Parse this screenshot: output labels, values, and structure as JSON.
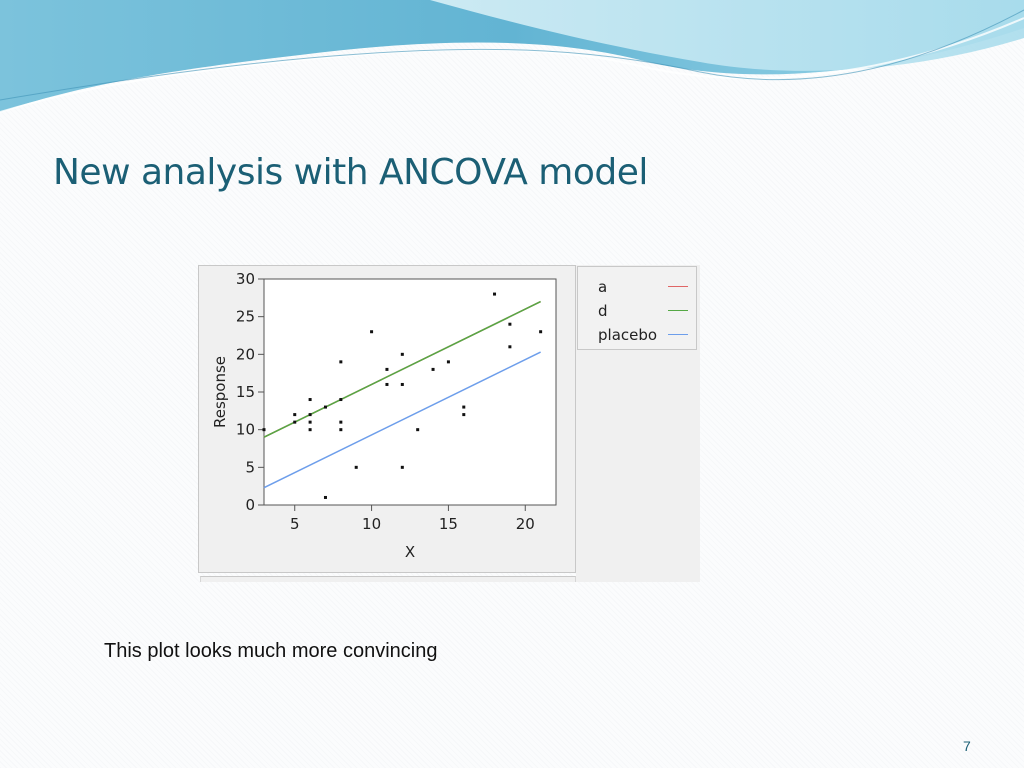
{
  "slide": {
    "title": "New analysis with ANCOVA model",
    "caption": "This plot looks much more convincing",
    "page_number": "7"
  },
  "colors": {
    "title": "#1b5f75",
    "banner_dark": "#4fa7c9",
    "banner_light": "#bfe6f2",
    "series_a": "#e06666",
    "series_d": "#55a845",
    "series_placebo": "#6d9eeb"
  },
  "chart_data": {
    "type": "scatter",
    "title": "",
    "xlabel": "X",
    "ylabel": "Response",
    "xlim": [
      3,
      22
    ],
    "ylim": [
      0,
      30
    ],
    "xticks": [
      5,
      10,
      15,
      20
    ],
    "yticks": [
      0,
      5,
      10,
      15,
      20,
      25,
      30
    ],
    "grid": false,
    "legend_position": "right",
    "points": [
      {
        "x": 3,
        "y": 10
      },
      {
        "x": 5,
        "y": 12
      },
      {
        "x": 5,
        "y": 11
      },
      {
        "x": 6,
        "y": 14
      },
      {
        "x": 6,
        "y": 12
      },
      {
        "x": 6,
        "y": 11
      },
      {
        "x": 6,
        "y": 10
      },
      {
        "x": 7,
        "y": 13
      },
      {
        "x": 7,
        "y": 1
      },
      {
        "x": 8,
        "y": 19
      },
      {
        "x": 8,
        "y": 14
      },
      {
        "x": 8,
        "y": 11
      },
      {
        "x": 8,
        "y": 10
      },
      {
        "x": 9,
        "y": 5
      },
      {
        "x": 10,
        "y": 23
      },
      {
        "x": 11,
        "y": 18
      },
      {
        "x": 11,
        "y": 16
      },
      {
        "x": 12,
        "y": 20
      },
      {
        "x": 12,
        "y": 16
      },
      {
        "x": 12,
        "y": 5
      },
      {
        "x": 13,
        "y": 10
      },
      {
        "x": 14,
        "y": 18
      },
      {
        "x": 15,
        "y": 19
      },
      {
        "x": 16,
        "y": 13
      },
      {
        "x": 16,
        "y": 12
      },
      {
        "x": 18,
        "y": 28
      },
      {
        "x": 19,
        "y": 24
      },
      {
        "x": 19,
        "y": 21
      },
      {
        "x": 21,
        "y": 23
      }
    ],
    "series": [
      {
        "name": "a",
        "color": "#e06666",
        "line": [
          [
            3,
            9
          ],
          [
            21,
            27
          ]
        ]
      },
      {
        "name": "d",
        "color": "#55a845",
        "line": [
          [
            3,
            9
          ],
          [
            21,
            27
          ]
        ]
      },
      {
        "name": "placebo",
        "color": "#6d9eeb",
        "line": [
          [
            3,
            2.3
          ],
          [
            21,
            20.3
          ]
        ]
      }
    ]
  }
}
